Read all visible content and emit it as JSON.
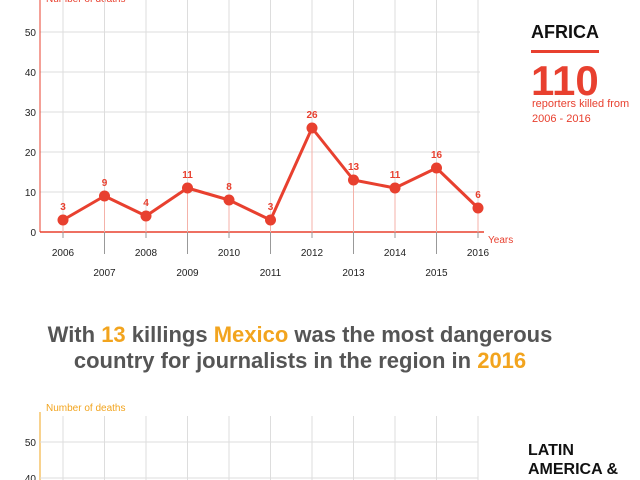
{
  "colors": {
    "africa_accent": "#e8402f",
    "latam_accent": "#f2a41e",
    "headline_gray": "#555555",
    "grid": "#dddddd"
  },
  "chart_data": [
    {
      "type": "line",
      "ylabel": "Number of deaths",
      "xlabel": "Years",
      "x": [
        "2006",
        "2007",
        "2008",
        "2009",
        "2010",
        "2011",
        "2012",
        "2013",
        "2014",
        "2015",
        "2016"
      ],
      "series": [
        {
          "values": [
            3,
            9,
            4,
            11,
            8,
            3,
            26,
            13,
            11,
            16,
            6
          ]
        }
      ],
      "yticks": [
        0,
        10,
        20,
        30,
        40,
        50
      ],
      "ylim": [
        0,
        50
      ],
      "grid": true,
      "data_labels": true,
      "color": "#e8402f"
    },
    {
      "type": "line",
      "ylabel": "Number of deaths",
      "xlabel": "",
      "x": [],
      "series": [],
      "yticks": [
        40,
        50
      ],
      "ylim": [
        0,
        50
      ],
      "grid": true,
      "color": "#f2a41e"
    }
  ],
  "africa": {
    "region": "AFRICA",
    "count": "110",
    "subtitle_line1": "reporters killed from",
    "subtitle_line2": "2006 - 2016"
  },
  "headline": {
    "part1": "With ",
    "num": "13",
    "part2": " killings ",
    "country": "Mexico",
    "part3": " was the most dangerous",
    "line2_part1": "country for journalists in the region in ",
    "year": "2016"
  },
  "latam": {
    "region_line1": "LATIN",
    "region_line2": "AMERICA &"
  }
}
